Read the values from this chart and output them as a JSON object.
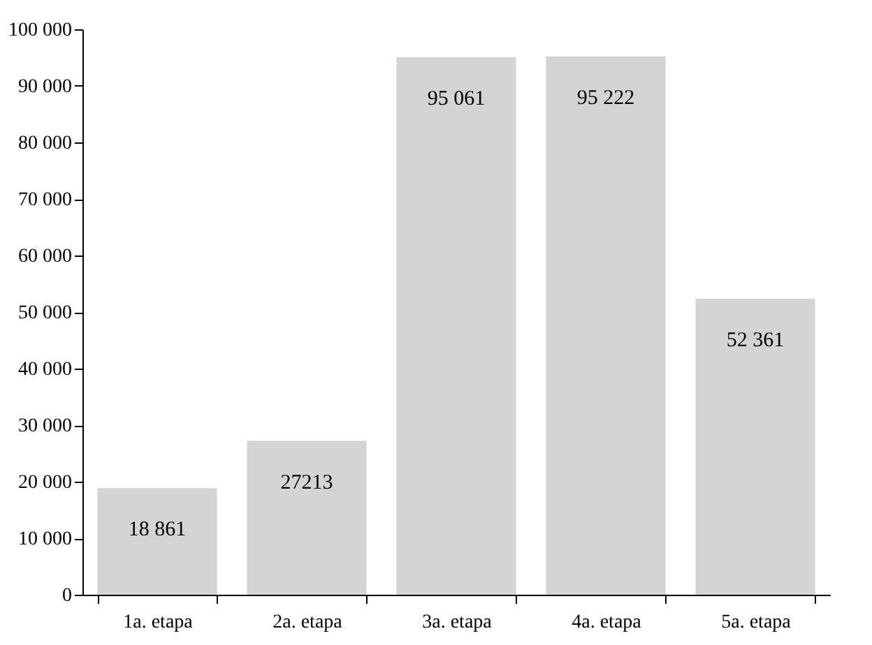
{
  "chart_data": {
    "type": "bar",
    "categories": [
      "1a. etapa",
      "2a. etapa",
      "3a. etapa",
      "4a. etapa",
      "5a. etapa"
    ],
    "values": [
      18861,
      27213,
      95061,
      95222,
      52361
    ],
    "value_labels": [
      "18 861",
      "27213",
      "95 061",
      "95 222",
      "52 361"
    ],
    "color": "#d4d4d4",
    "ylim": [
      0,
      100000
    ],
    "yticks": [
      {
        "value": 0,
        "label": "0"
      },
      {
        "value": 10000,
        "label": "10 000"
      },
      {
        "value": 20000,
        "label": "20 000"
      },
      {
        "value": 30000,
        "label": "30 000"
      },
      {
        "value": 40000,
        "label": "40 000"
      },
      {
        "value": 50000,
        "label": "50 000"
      },
      {
        "value": 60000,
        "label": "60 000"
      },
      {
        "value": 70000,
        "label": "70 000"
      },
      {
        "value": 80000,
        "label": "80 000"
      },
      {
        "value": 90000,
        "label": "90 000"
      },
      {
        "value": 100000,
        "label": "100 000"
      }
    ],
    "grid": false
  }
}
